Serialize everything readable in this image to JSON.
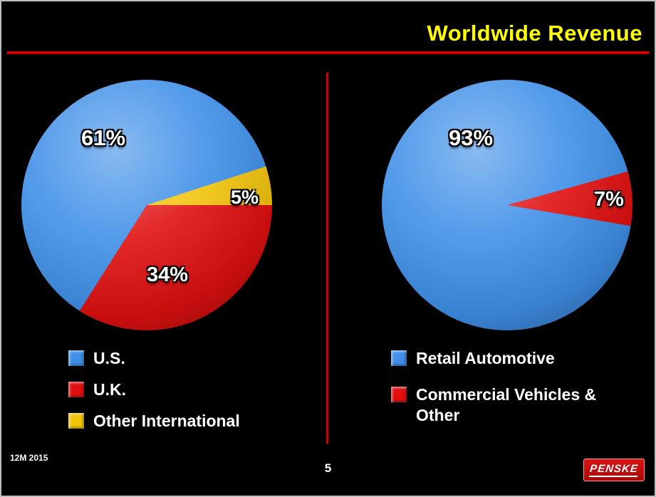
{
  "slide": {
    "title": "Worldwide Revenue",
    "footnote": "12M 2015",
    "page_number": "5",
    "logo_text": "PENSKE"
  },
  "colors": {
    "background": "#000000",
    "title_yellow": "#ffff00",
    "accent_red": "#cf0000",
    "pie_blue": "#3f8fe8",
    "pie_red": "#e01010",
    "pie_yellow": "#f2c40d"
  },
  "chart_data": [
    {
      "type": "pie",
      "labels": [
        "U.S.",
        "U.K.",
        "Other International"
      ],
      "values": [
        61,
        34,
        5
      ],
      "data_labels": [
        "61%",
        "34%",
        "5%"
      ],
      "colors": [
        "#3f8fe8",
        "#e01010",
        "#f2c40d"
      ],
      "legend_position": "below-left",
      "start_angle": 212.4,
      "slice_order": [
        0,
        2,
        1
      ]
    },
    {
      "type": "pie",
      "labels": [
        "Retail Automotive",
        "Commercial Vehicles & Other"
      ],
      "values": [
        93,
        7
      ],
      "data_labels": [
        "93%",
        "7%"
      ],
      "colors": [
        "#3f8fe8",
        "#e01010"
      ],
      "legend_position": "below-left",
      "start_angle": 99.6,
      "slice_order": [
        0,
        1
      ]
    }
  ]
}
